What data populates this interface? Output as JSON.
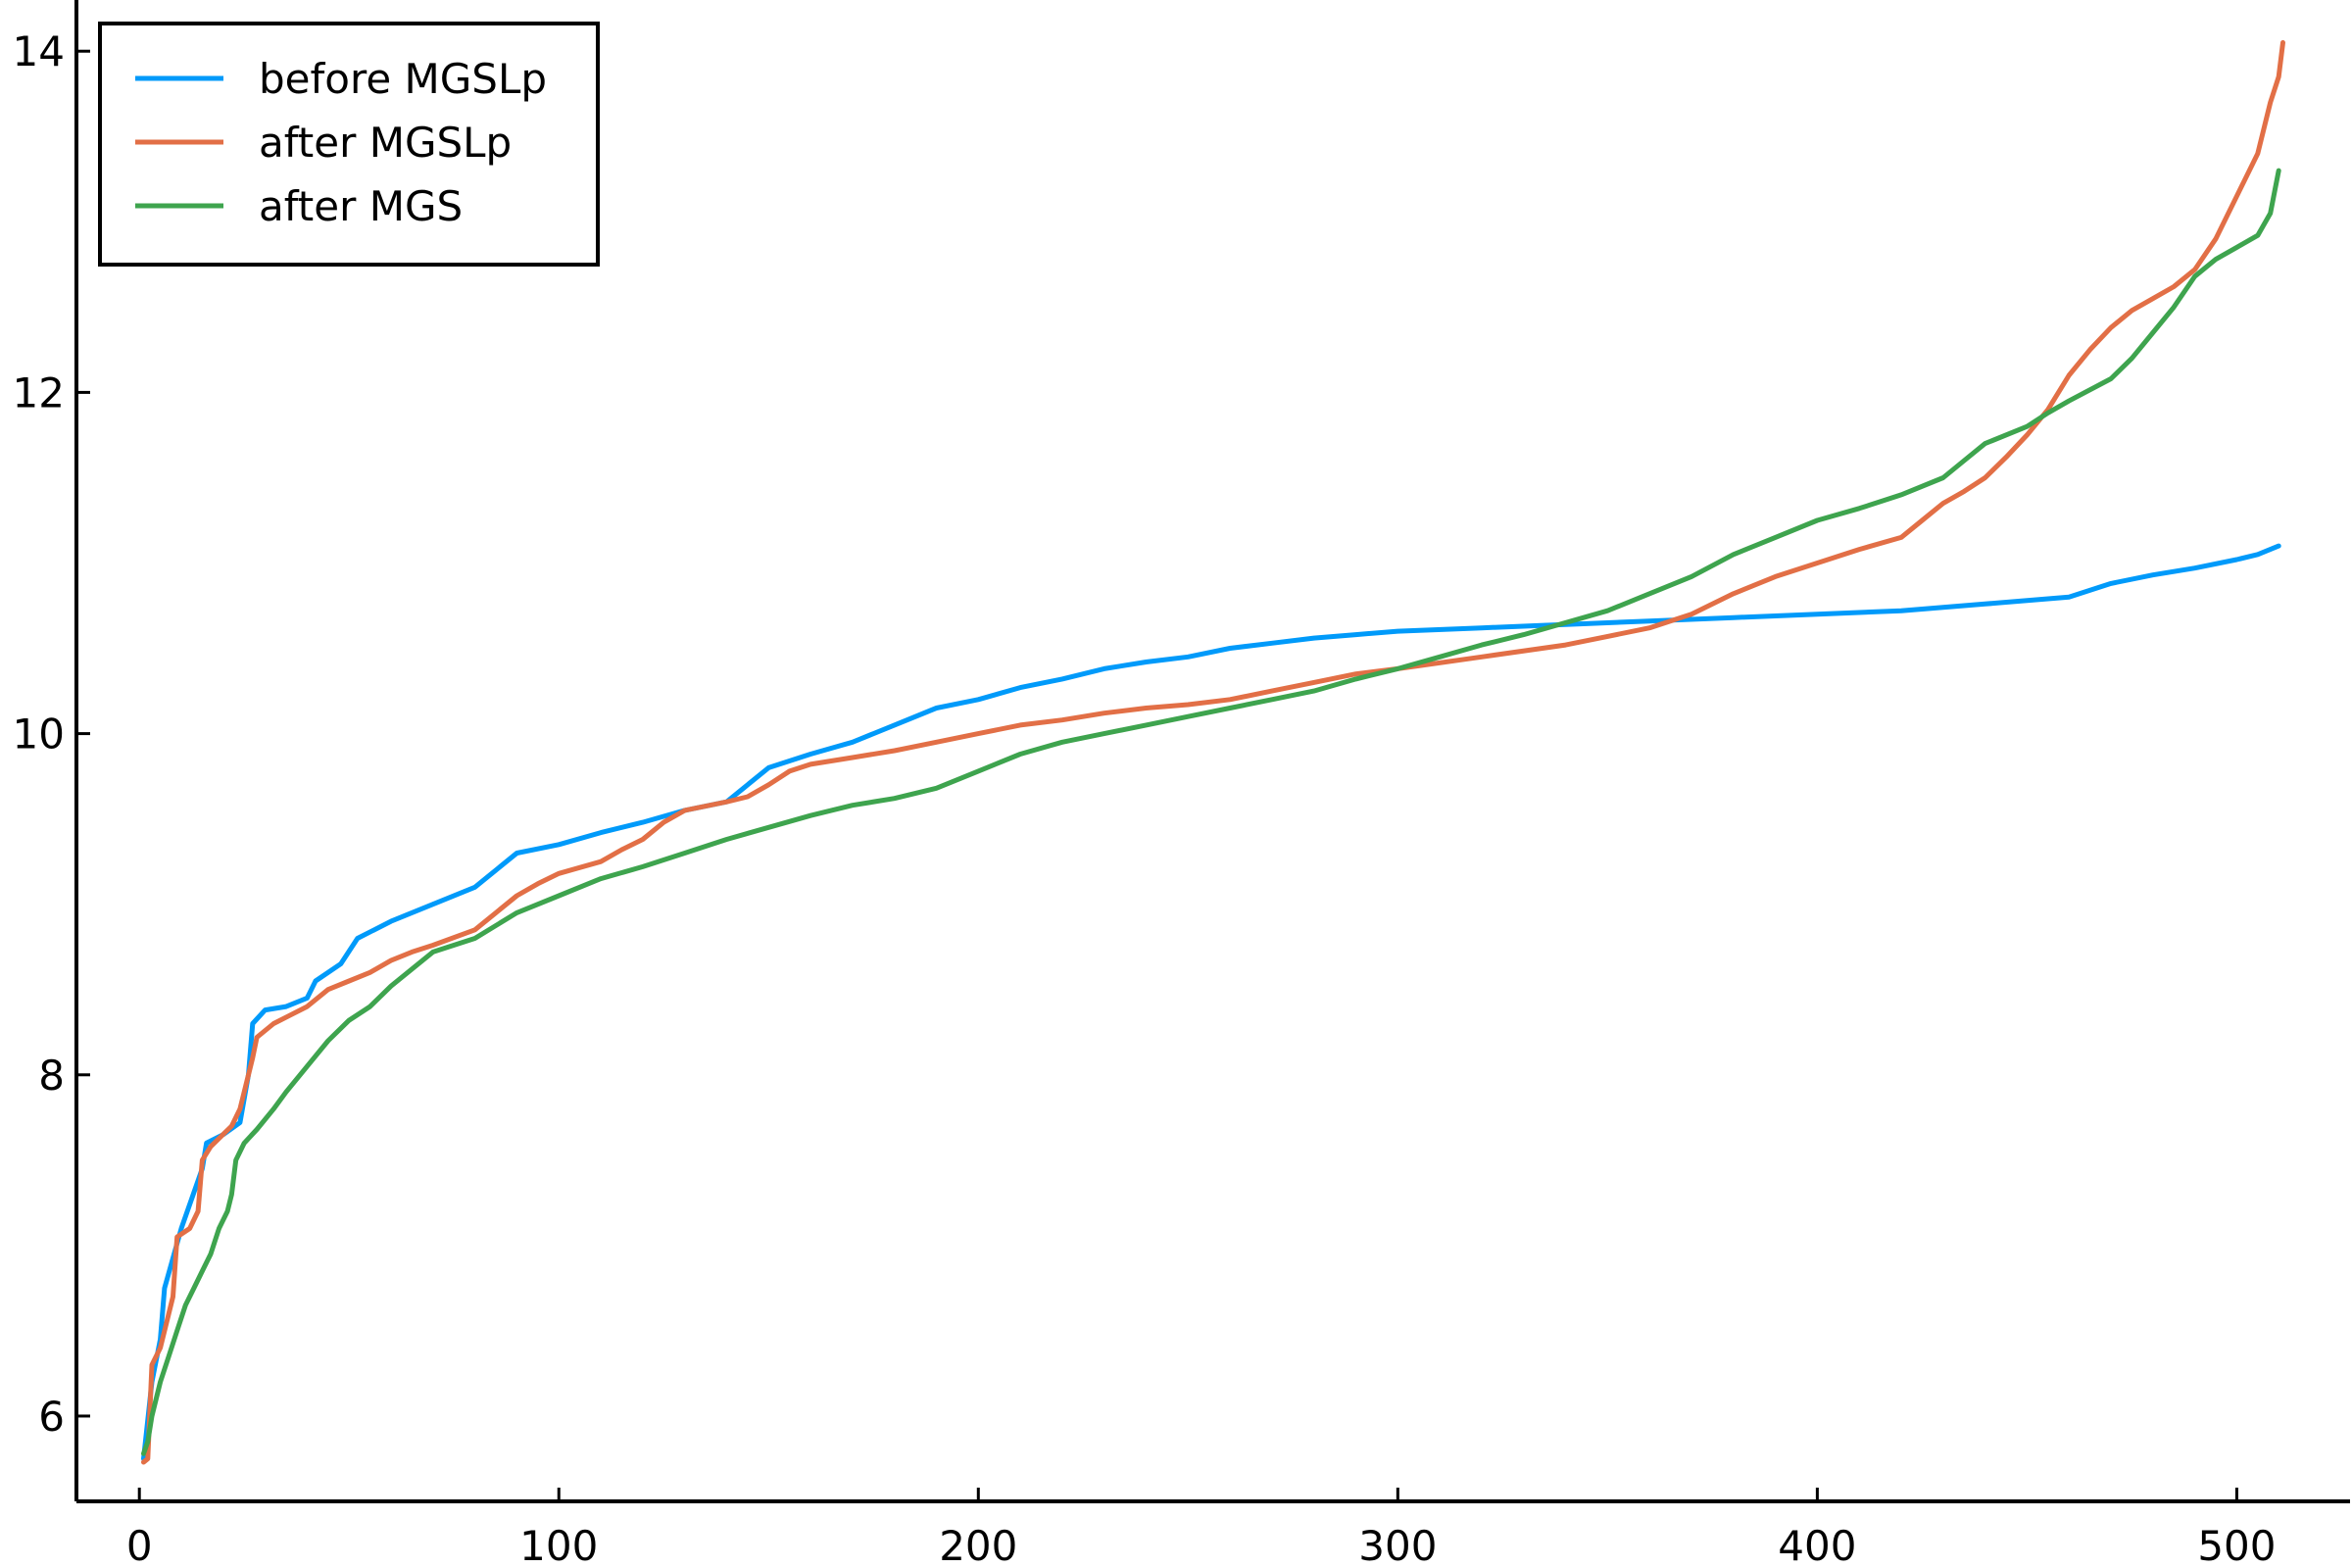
{
  "chart_data": {
    "type": "line",
    "title": "",
    "xlabel": "",
    "ylabel": "",
    "xlim": [
      -15,
      527
    ],
    "ylim": [
      5.5,
      14.3
    ],
    "xticks": [
      0,
      100,
      200,
      300,
      400,
      500
    ],
    "yticks": [
      6,
      8,
      10,
      12,
      14
    ],
    "grid": false,
    "legend_position": "top-left",
    "series": [
      {
        "name": "before MGSLp",
        "color": "#009AFA",
        "points": [
          [
            1,
            5.75
          ],
          [
            3,
            6.2
          ],
          [
            5,
            6.45
          ],
          [
            6,
            6.75
          ],
          [
            10,
            7.1
          ],
          [
            15,
            7.45
          ],
          [
            16,
            7.6
          ],
          [
            20,
            7.65
          ],
          [
            24,
            7.72
          ],
          [
            26,
            8.0
          ],
          [
            27,
            8.3
          ],
          [
            30,
            8.38
          ],
          [
            35,
            8.4
          ],
          [
            40,
            8.45
          ],
          [
            42,
            8.55
          ],
          [
            48,
            8.65
          ],
          [
            52,
            8.8
          ],
          [
            60,
            8.9
          ],
          [
            70,
            9.0
          ],
          [
            80,
            9.1
          ],
          [
            85,
            9.2
          ],
          [
            90,
            9.3
          ],
          [
            100,
            9.35
          ],
          [
            110,
            9.42
          ],
          [
            120,
            9.48
          ],
          [
            130,
            9.55
          ],
          [
            140,
            9.6
          ],
          [
            145,
            9.7
          ],
          [
            150,
            9.8
          ],
          [
            160,
            9.88
          ],
          [
            170,
            9.95
          ],
          [
            180,
            10.05
          ],
          [
            190,
            10.15
          ],
          [
            200,
            10.2
          ],
          [
            210,
            10.27
          ],
          [
            220,
            10.32
          ],
          [
            230,
            10.38
          ],
          [
            240,
            10.42
          ],
          [
            250,
            10.45
          ],
          [
            260,
            10.5
          ],
          [
            270,
            10.53
          ],
          [
            280,
            10.56
          ],
          [
            290,
            10.58
          ],
          [
            300,
            10.6
          ],
          [
            320,
            10.62
          ],
          [
            340,
            10.64
          ],
          [
            360,
            10.66
          ],
          [
            380,
            10.68
          ],
          [
            400,
            10.7
          ],
          [
            420,
            10.72
          ],
          [
            440,
            10.76
          ],
          [
            460,
            10.8
          ],
          [
            470,
            10.88
          ],
          [
            480,
            10.93
          ],
          [
            490,
            10.97
          ],
          [
            500,
            11.02
          ],
          [
            505,
            11.05
          ],
          [
            510,
            11.1
          ]
        ]
      },
      {
        "name": "after MGSLp",
        "color": "#E26F46",
        "points": [
          [
            1,
            5.73
          ],
          [
            2,
            5.75
          ],
          [
            3,
            6.3
          ],
          [
            5,
            6.4
          ],
          [
            8,
            6.7
          ],
          [
            9,
            7.05
          ],
          [
            12,
            7.1
          ],
          [
            14,
            7.2
          ],
          [
            15,
            7.5
          ],
          [
            17,
            7.58
          ],
          [
            22,
            7.7
          ],
          [
            24,
            7.8
          ],
          [
            25,
            7.9
          ],
          [
            27,
            8.1
          ],
          [
            28,
            8.22
          ],
          [
            32,
            8.3
          ],
          [
            36,
            8.35
          ],
          [
            40,
            8.4
          ],
          [
            45,
            8.5
          ],
          [
            50,
            8.55
          ],
          [
            55,
            8.6
          ],
          [
            60,
            8.67
          ],
          [
            65,
            8.72
          ],
          [
            70,
            8.76
          ],
          [
            80,
            8.85
          ],
          [
            85,
            8.95
          ],
          [
            90,
            9.05
          ],
          [
            95,
            9.12
          ],
          [
            100,
            9.18
          ],
          [
            110,
            9.25
          ],
          [
            115,
            9.32
          ],
          [
            120,
            9.38
          ],
          [
            125,
            9.48
          ],
          [
            130,
            9.55
          ],
          [
            140,
            9.6
          ],
          [
            145,
            9.63
          ],
          [
            150,
            9.7
          ],
          [
            155,
            9.78
          ],
          [
            160,
            9.82
          ],
          [
            170,
            9.86
          ],
          [
            180,
            9.9
          ],
          [
            190,
            9.95
          ],
          [
            200,
            10.0
          ],
          [
            210,
            10.05
          ],
          [
            220,
            10.08
          ],
          [
            230,
            10.12
          ],
          [
            240,
            10.15
          ],
          [
            250,
            10.17
          ],
          [
            260,
            10.2
          ],
          [
            270,
            10.25
          ],
          [
            280,
            10.3
          ],
          [
            290,
            10.35
          ],
          [
            300,
            10.38
          ],
          [
            320,
            10.45
          ],
          [
            340,
            10.52
          ],
          [
            350,
            10.57
          ],
          [
            360,
            10.62
          ],
          [
            370,
            10.7
          ],
          [
            380,
            10.82
          ],
          [
            390,
            10.92
          ],
          [
            400,
            11.0
          ],
          [
            410,
            11.08
          ],
          [
            420,
            11.15
          ],
          [
            425,
            11.25
          ],
          [
            430,
            11.35
          ],
          [
            435,
            11.42
          ],
          [
            440,
            11.5
          ],
          [
            445,
            11.62
          ],
          [
            450,
            11.75
          ],
          [
            455,
            11.9
          ],
          [
            460,
            12.1
          ],
          [
            465,
            12.25
          ],
          [
            470,
            12.38
          ],
          [
            475,
            12.48
          ],
          [
            480,
            12.55
          ],
          [
            485,
            12.62
          ],
          [
            490,
            12.72
          ],
          [
            495,
            12.9
          ],
          [
            500,
            13.15
          ],
          [
            505,
            13.4
          ],
          [
            508,
            13.7
          ],
          [
            510,
            13.85
          ],
          [
            511,
            14.05
          ]
        ]
      },
      {
        "name": "after MGS",
        "color": "#3EA44E",
        "points": [
          [
            1,
            5.78
          ],
          [
            2,
            5.85
          ],
          [
            3,
            6.0
          ],
          [
            5,
            6.2
          ],
          [
            7,
            6.35
          ],
          [
            9,
            6.5
          ],
          [
            11,
            6.65
          ],
          [
            13,
            6.75
          ],
          [
            15,
            6.85
          ],
          [
            17,
            6.95
          ],
          [
            19,
            7.1
          ],
          [
            21,
            7.2
          ],
          [
            22,
            7.3
          ],
          [
            23,
            7.5
          ],
          [
            25,
            7.6
          ],
          [
            28,
            7.68
          ],
          [
            32,
            7.8
          ],
          [
            35,
            7.9
          ],
          [
            40,
            8.05
          ],
          [
            45,
            8.2
          ],
          [
            50,
            8.32
          ],
          [
            55,
            8.4
          ],
          [
            60,
            8.52
          ],
          [
            65,
            8.62
          ],
          [
            70,
            8.72
          ],
          [
            80,
            8.8
          ],
          [
            90,
            8.95
          ],
          [
            100,
            9.05
          ],
          [
            110,
            9.15
          ],
          [
            120,
            9.22
          ],
          [
            130,
            9.3
          ],
          [
            140,
            9.38
          ],
          [
            150,
            9.45
          ],
          [
            160,
            9.52
          ],
          [
            170,
            9.58
          ],
          [
            180,
            9.62
          ],
          [
            190,
            9.68
          ],
          [
            200,
            9.78
          ],
          [
            210,
            9.88
          ],
          [
            220,
            9.95
          ],
          [
            230,
            10.0
          ],
          [
            240,
            10.05
          ],
          [
            250,
            10.1
          ],
          [
            260,
            10.15
          ],
          [
            270,
            10.2
          ],
          [
            280,
            10.25
          ],
          [
            290,
            10.32
          ],
          [
            300,
            10.38
          ],
          [
            310,
            10.45
          ],
          [
            320,
            10.52
          ],
          [
            330,
            10.58
          ],
          [
            340,
            10.65
          ],
          [
            350,
            10.72
          ],
          [
            360,
            10.82
          ],
          [
            370,
            10.92
          ],
          [
            380,
            11.05
          ],
          [
            390,
            11.15
          ],
          [
            400,
            11.25
          ],
          [
            410,
            11.32
          ],
          [
            420,
            11.4
          ],
          [
            430,
            11.5
          ],
          [
            435,
            11.6
          ],
          [
            440,
            11.7
          ],
          [
            450,
            11.8
          ],
          [
            455,
            11.88
          ],
          [
            460,
            11.95
          ],
          [
            470,
            12.08
          ],
          [
            475,
            12.2
          ],
          [
            480,
            12.35
          ],
          [
            485,
            12.5
          ],
          [
            490,
            12.68
          ],
          [
            495,
            12.78
          ],
          [
            500,
            12.85
          ],
          [
            505,
            12.92
          ],
          [
            508,
            13.05
          ],
          [
            510,
            13.3
          ]
        ]
      }
    ]
  }
}
